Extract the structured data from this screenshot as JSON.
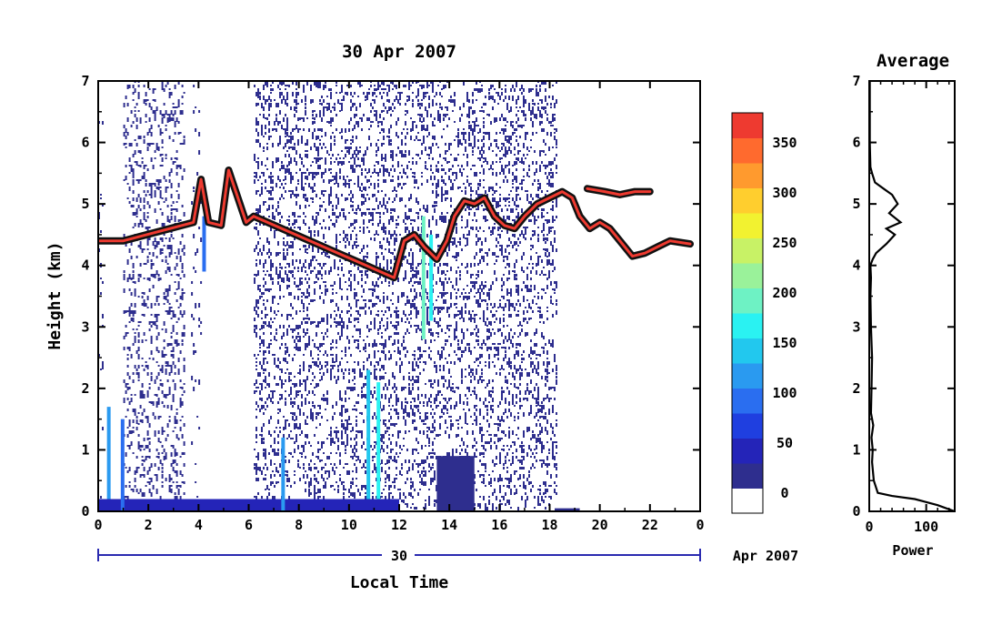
{
  "chart_data": [
    {
      "type": "heatmap",
      "title": "30 Apr 2007",
      "xlabel": "Local Time",
      "ylabel": "Height (km)",
      "xlim": [
        0,
        24
      ],
      "ylim": [
        0,
        7
      ],
      "x_ticks": [
        "0",
        "2",
        "4",
        "6",
        "8",
        "10",
        "12",
        "14",
        "16",
        "18",
        "20",
        "22",
        "0"
      ],
      "y_ticks": [
        "0",
        "1",
        "2",
        "3",
        "4",
        "5",
        "6",
        "7"
      ],
      "date_bar": {
        "day_label": "30",
        "month_label": "Apr 2007"
      },
      "colorbar": {
        "ticks": [
          "0",
          "50",
          "100",
          "150",
          "200",
          "250",
          "300",
          "350"
        ],
        "tick_values": [
          0,
          50,
          100,
          150,
          200,
          250,
          300,
          350
        ],
        "range": [
          -20,
          380
        ],
        "colors": [
          "#ffffff",
          "#2e2e8e",
          "#2424b8",
          "#1f3fe0",
          "#2a6ef0",
          "#2a9af0",
          "#22c8ee",
          "#2af2f2",
          "#6ef2c4",
          "#9af29a",
          "#c8f266",
          "#f2f230",
          "#ffce2e",
          "#ff9a2e",
          "#ff6a2e",
          "#ee3a30"
        ]
      },
      "features": [
        {
          "name": "cloud layer",
          "points": [
            [
              0.0,
              4.4
            ],
            [
              0.5,
              4.4
            ],
            [
              1.0,
              4.4
            ],
            [
              3.8,
              4.7
            ],
            [
              4.1,
              5.4
            ],
            [
              4.4,
              4.7
            ],
            [
              4.9,
              4.65
            ],
            [
              5.2,
              5.55
            ],
            [
              5.9,
              4.7
            ],
            [
              6.2,
              4.8
            ],
            [
              11.8,
              3.8
            ],
            [
              12.2,
              4.4
            ],
            [
              12.6,
              4.5
            ],
            [
              13.0,
              4.3
            ],
            [
              13.5,
              4.1
            ],
            [
              13.9,
              4.4
            ],
            [
              14.2,
              4.8
            ],
            [
              14.6,
              5.05
            ],
            [
              15.0,
              5.0
            ],
            [
              15.4,
              5.1
            ],
            [
              15.8,
              4.8
            ],
            [
              16.2,
              4.65
            ],
            [
              16.6,
              4.6
            ],
            [
              17.0,
              4.8
            ],
            [
              17.5,
              5.0
            ],
            [
              18.0,
              5.1
            ],
            [
              18.5,
              5.2
            ],
            [
              18.9,
              5.1
            ],
            [
              19.2,
              4.8
            ],
            [
              19.6,
              4.6
            ],
            [
              20.0,
              4.7
            ],
            [
              20.4,
              4.6
            ],
            [
              20.7,
              4.45
            ],
            [
              21.3,
              4.15
            ],
            [
              21.8,
              4.2
            ],
            [
              22.3,
              4.3
            ],
            [
              22.8,
              4.4
            ],
            [
              23.6,
              4.35
            ]
          ]
        },
        {
          "name": "upper cloud",
          "points": [
            [
              19.5,
              5.25
            ],
            [
              20.2,
              5.2
            ],
            [
              20.8,
              5.15
            ],
            [
              21.4,
              5.2
            ],
            [
              22.0,
              5.2
            ]
          ]
        }
      ]
    },
    {
      "type": "line",
      "title": "Average",
      "xlabel": "Power",
      "xlim": [
        0,
        150
      ],
      "ylim": [
        0,
        7
      ],
      "x_ticks": [
        "0",
        "100"
      ],
      "y_ticks": [
        "0",
        "1",
        "2",
        "3",
        "4",
        "5",
        "6",
        "7"
      ],
      "series": [
        {
          "x": [
            150,
            120,
            80,
            40,
            15,
            8,
            5,
            6,
            4,
            7,
            3,
            4,
            5,
            3,
            2,
            3,
            2,
            4,
            6,
            12,
            30,
            45,
            30,
            55,
            35,
            50,
            40,
            25,
            10,
            5,
            2,
            1,
            1
          ],
          "y": [
            0.0,
            0.1,
            0.2,
            0.25,
            0.3,
            0.5,
            0.8,
            1.0,
            1.2,
            1.4,
            1.6,
            2.0,
            2.5,
            3.0,
            3.5,
            3.8,
            4.0,
            4.05,
            4.1,
            4.2,
            4.35,
            4.5,
            4.6,
            4.7,
            4.85,
            5.0,
            5.15,
            5.25,
            5.35,
            5.5,
            5.6,
            6.0,
            7.0
          ]
        }
      ]
    }
  ]
}
